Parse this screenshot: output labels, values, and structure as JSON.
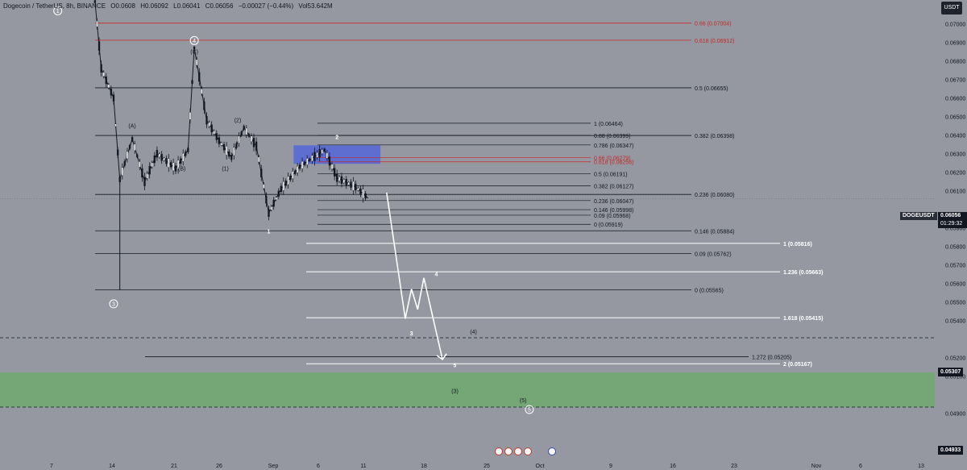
{
  "header": {
    "symbol": "Dogecoin / TetherUS, 8h, BINANCE",
    "open": "O0.0608",
    "high": "H0.06092",
    "low": "L0.06041",
    "close": "C0.06056",
    "change": "−0.00027 (−0.44%)",
    "volume": "Vol53.642M"
  },
  "quote_currency": "USDT",
  "symbol_tag": "DOGEUSDT",
  "current_price": {
    "value": "0.06056",
    "countdown": "01:29:32"
  },
  "price_tags": [
    {
      "label": "0.05307",
      "price": 0.05307
    },
    {
      "label": "0.04933",
      "price": 0.04933
    }
  ],
  "chart_data": {
    "type": "candlestick",
    "price_axis": {
      "range": [
        0.0488,
        0.0712
      ],
      "ticks": [
        "0.07000",
        "0.06900",
        "0.06800",
        "0.06700",
        "0.06600",
        "0.06500",
        "0.06400",
        "0.06300",
        "0.06200",
        "0.06100",
        "0.05900",
        "0.05800",
        "0.05700",
        "0.05600",
        "0.05500",
        "0.05400",
        "0.05200",
        "0.05100",
        "0.04900"
      ]
    },
    "time_axis": {
      "labels": [
        "7",
        "14",
        "21",
        "26",
        "Sep",
        "6",
        "11",
        "18",
        "25",
        "Oct",
        "9",
        "16",
        "23",
        "Nov",
        "6",
        "13"
      ]
    },
    "series_path": [
      {
        "t": "Aug 14",
        "price": 0.0712
      },
      {
        "t": "Aug 15",
        "price": 0.0676
      },
      {
        "t": "Aug 17",
        "price": 0.066
      },
      {
        "t": "Aug 18",
        "price": 0.0616
      },
      {
        "t": "Aug 20",
        "price": 0.0638
      },
      {
        "t": "Aug 22",
        "price": 0.0615
      },
      {
        "t": "Aug 24",
        "price": 0.063
      },
      {
        "t": "Aug 27",
        "price": 0.0622
      },
      {
        "t": "Aug 29",
        "price": 0.0632
      },
      {
        "t": "Aug 30",
        "price": 0.0687
      },
      {
        "t": "Sep 1",
        "price": 0.0648
      },
      {
        "t": "Sep 3",
        "price": 0.0637
      },
      {
        "t": "Sep 5",
        "price": 0.0628
      },
      {
        "t": "Sep 7",
        "price": 0.0644
      },
      {
        "t": "Sep 9",
        "price": 0.0634
      },
      {
        "t": "Sep 11",
        "price": 0.0598
      },
      {
        "t": "Sep 13",
        "price": 0.0611
      },
      {
        "t": "Sep 16",
        "price": 0.0623
      },
      {
        "t": "Sep 20",
        "price": 0.0632
      },
      {
        "t": "Sep 22",
        "price": 0.0617
      },
      {
        "t": "Sep 25",
        "price": 0.0612
      },
      {
        "t": "Sep 27",
        "price": 0.0606
      }
    ],
    "fib_right": [
      {
        "ratio": "0.66",
        "label": "0.66 (0.07004)",
        "price": 0.07004,
        "color": "#c62828"
      },
      {
        "ratio": "0.618",
        "label": "0.618 (0.06912)",
        "price": 0.06912,
        "color": "#c62828"
      },
      {
        "ratio": "0.5",
        "label": "0.5 (0.06655)",
        "price": 0.06655,
        "color": "#131722"
      },
      {
        "ratio": "0.382",
        "label": "0.382 (0.06398)",
        "price": 0.06398,
        "color": "#131722"
      },
      {
        "ratio": "0.236",
        "label": "0.236 (0.06080)",
        "price": 0.0608,
        "color": "#131722"
      },
      {
        "ratio": "0.146",
        "label": "0.146 (0.05884)",
        "price": 0.05884,
        "color": "#131722"
      },
      {
        "ratio": "0.09",
        "label": "0.09 (0.05762)",
        "price": 0.05762,
        "color": "#131722"
      },
      {
        "ratio": "0",
        "label": "0 (0.05565)",
        "price": 0.05565,
        "color": "#131722"
      }
    ],
    "fib_mid": [
      {
        "label": "1 (0.06464)",
        "price": 0.06464,
        "color": "#131722"
      },
      {
        "label": "0.88 (0.06399)",
        "price": 0.06399,
        "color": "#131722"
      },
      {
        "label": "0.786 (0.06347)",
        "price": 0.06347,
        "color": "#131722"
      },
      {
        "label": "0.66 (0.06279)",
        "price": 0.06279,
        "color": "#c62828"
      },
      {
        "label": "0.618 (0.06256)",
        "price": 0.06256,
        "color": "#c62828"
      },
      {
        "label": "0.5 (0.06191)",
        "price": 0.06191,
        "color": "#131722"
      },
      {
        "label": "0.382 (0.06127)",
        "price": 0.06127,
        "color": "#131722"
      },
      {
        "label": "0.236 (0.06047)",
        "price": 0.06047,
        "color": "#131722"
      },
      {
        "label": "0.146 (0.05998)",
        "price": 0.05998,
        "color": "#131722"
      },
      {
        "label": "0.09 (0.05968)",
        "price": 0.05968,
        "color": "#131722"
      },
      {
        "label": "0 (0.05919)",
        "price": 0.05919,
        "color": "#131722"
      }
    ],
    "fib_ext_white": [
      {
        "label": "1 (0.05816)",
        "price": 0.05816
      },
      {
        "label": "1.236 (0.05663)",
        "price": 0.05663
      },
      {
        "label": "1.618 (0.05415)",
        "price": 0.05415
      },
      {
        "label": "2 (0.05167)",
        "price": 0.05167
      }
    ],
    "fib_ext_dark": [
      {
        "label": "1.272 (0.05205)",
        "price": 0.05205
      }
    ],
    "dashed_levels": [
      0.05307,
      0.04933
    ],
    "demand_zone": {
      "from": 0.04933,
      "to": 0.0512,
      "color": "#6fa86f"
    },
    "supply_zone": {
      "from": 0.06245,
      "to": 0.06345,
      "color": "#4c5fe0"
    },
    "wave_labels": [
      {
        "text": "1",
        "circled": true,
        "price": 0.0707,
        "t": "Aug 8"
      },
      {
        "text": "3",
        "circled": true,
        "price": 0.0549,
        "t": "Aug 17"
      },
      {
        "text": "4",
        "circled": true,
        "price": 0.0691,
        "t": "Aug 30"
      },
      {
        "text": "(C)",
        "circled": false,
        "price": 0.0685,
        "t": "Aug 30"
      },
      {
        "text": "(A)",
        "circled": false,
        "price": 0.0645,
        "t": "Aug 20"
      },
      {
        "text": "(B)",
        "circled": false,
        "price": 0.0622,
        "t": "Aug 28"
      },
      {
        "text": "(2)",
        "circled": false,
        "price": 0.0648,
        "t": "Sep 6"
      },
      {
        "text": "(1)",
        "circled": false,
        "price": 0.0622,
        "t": "Sep 4"
      },
      {
        "text": "1",
        "circled": false,
        "price": 0.0588,
        "t": "Sep 11"
      },
      {
        "text": "2",
        "circled": false,
        "price": 0.0639,
        "t": "Sep 22"
      },
      {
        "text": "3",
        "circled": false,
        "price": 0.0533,
        "t": "Oct 4"
      },
      {
        "text": "4",
        "circled": false,
        "price": 0.0565,
        "t": "Oct 8"
      },
      {
        "text": "5",
        "circled": false,
        "price": 0.0516,
        "t": "Oct 11"
      },
      {
        "text": "(4)",
        "circled": false,
        "price": 0.0534,
        "t": "Oct 14"
      },
      {
        "text": "(3)",
        "circled": false,
        "price": 0.0502,
        "t": "Oct 11"
      },
      {
        "text": "(5)",
        "circled": false,
        "price": 0.0497,
        "t": "Oct 22"
      },
      {
        "text": "5",
        "circled": true,
        "price": 0.0492,
        "t": "Oct 23"
      }
    ],
    "projection_path": [
      {
        "t": "Sep 30",
        "price": 0.0609
      },
      {
        "t": "Oct 3",
        "price": 0.0541
      },
      {
        "t": "Oct 4",
        "price": 0.0557
      },
      {
        "t": "Oct 5",
        "price": 0.0546
      },
      {
        "t": "Oct 6",
        "price": 0.0563
      },
      {
        "t": "Oct 9",
        "price": 0.0519
      }
    ]
  }
}
